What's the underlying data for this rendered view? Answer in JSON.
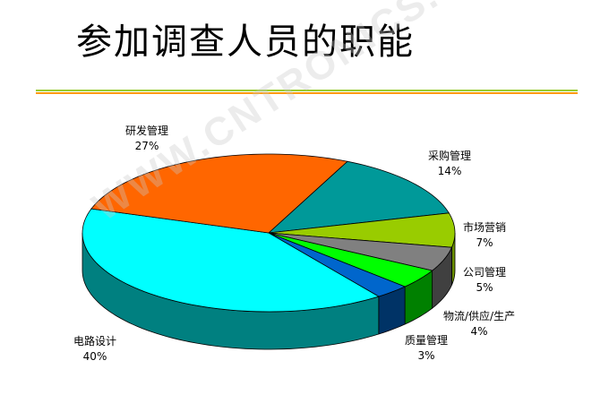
{
  "chart_data": {
    "type": "pie",
    "title": "参加调查人员的职能",
    "style": "3d",
    "slices": [
      {
        "label": "采购管理",
        "value": 14,
        "display": "14%",
        "color": "#009999",
        "side": "#006b6b"
      },
      {
        "label": "市场营销",
        "value": 7,
        "display": "7%",
        "color": "#99cc00",
        "side": "#6b8f00"
      },
      {
        "label": "公司管理",
        "value": 5,
        "display": "5%",
        "color": "#808080",
        "side": "#404040"
      },
      {
        "label": "物流/供应/生产",
        "value": 4,
        "display": "4%",
        "color": "#00ff00",
        "side": "#008000"
      },
      {
        "label": "质量管理",
        "value": 3,
        "display": "3%",
        "color": "#0066cc",
        "side": "#003366"
      },
      {
        "label": "电路设计",
        "value": 40,
        "display": "40%",
        "color": "#00ffff",
        "side": "#008080"
      },
      {
        "label": "研发管理",
        "value": 27,
        "display": "27%",
        "color": "#ff6600",
        "side": "#b34700"
      }
    ]
  },
  "watermark": "WWW.CNTRONICS.COM"
}
